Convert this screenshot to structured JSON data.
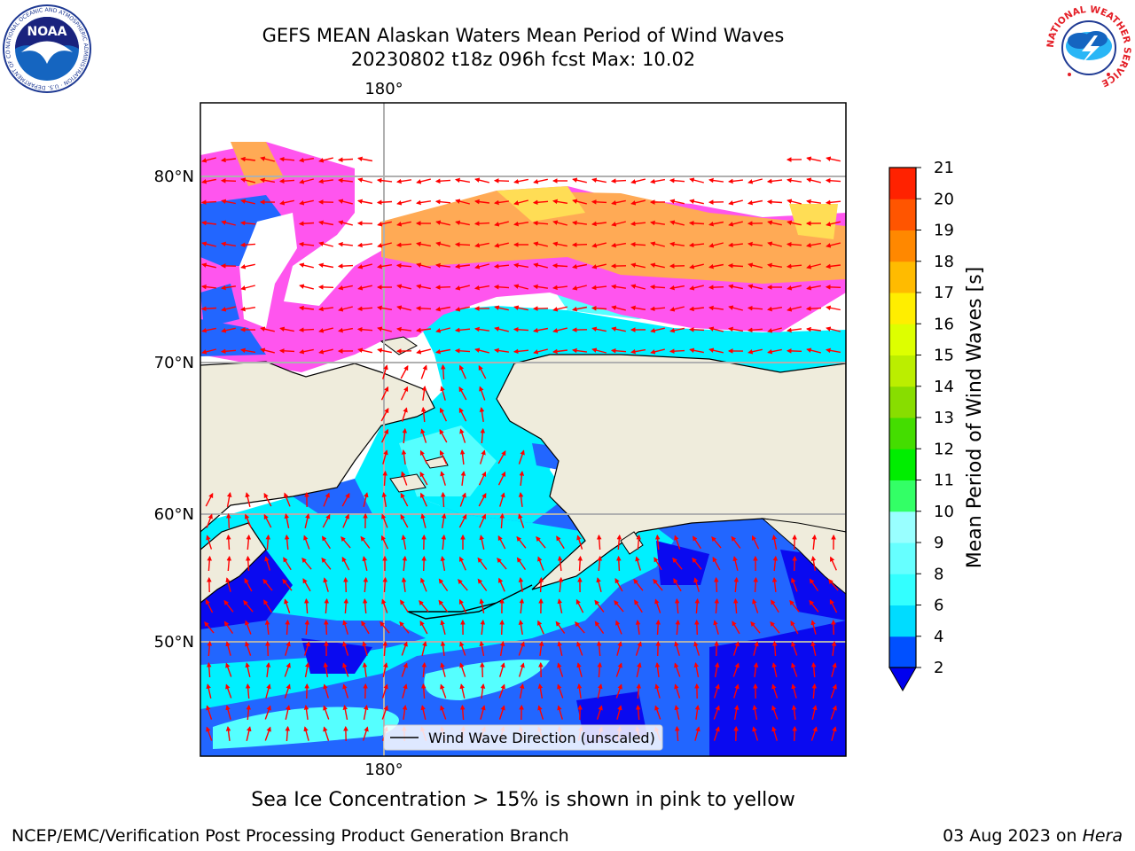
{
  "header": {
    "title_line1": "GEFS MEAN Alaskan Waters Mean Period of Wind Waves",
    "title_line2": "20230802 t18z 096h fcst   Max: 10.02"
  },
  "logos": {
    "left": {
      "icon": "noaa-logo-icon",
      "text": "NOAA",
      "ring_text": "NATIONAL OCEANIC AND ATMOSPHERIC ADMINISTRATION · U.S. DEPARTMENT OF COMMERCE"
    },
    "right": {
      "icon": "nws-logo-icon",
      "ring_text": "NATIONAL WEATHER SERVICE"
    }
  },
  "map": {
    "lon_label_top": "180°",
    "lon_label_bottom": "180°",
    "lat_labels": [
      "80°N",
      "70°N",
      "60°N",
      "50°N"
    ],
    "legend_label": "Wind Wave Direction (unscaled)"
  },
  "colorbar": {
    "label": "Mean Period of Wind Waves [s]",
    "ticks": [
      "2",
      "4",
      "6",
      "8",
      "9",
      "10",
      "11",
      "12",
      "13",
      "14",
      "15",
      "16",
      "17",
      "18",
      "19",
      "20",
      "21"
    ],
    "colors": [
      "#0050ff",
      "#00dcff",
      "#33ffff",
      "#66ffff",
      "#99ffff",
      "#33ff66",
      "#00ee00",
      "#44dd00",
      "#88dd00",
      "#bbee00",
      "#ddff00",
      "#ffee00",
      "#ffbb00",
      "#ff8800",
      "#ff5500",
      "#ff2200"
    ],
    "under_color": "#0000ee"
  },
  "palette": {
    "land": "#efecdc",
    "deep_blue": "#0a0af0",
    "blue": "#2266ff",
    "cyan": "#00f0ff",
    "light_cyan": "#55ffff",
    "ice_pink": "#ff55ee",
    "ice_orange": "#ffaa55",
    "ice_yellow": "#ffdd55",
    "arrow": "#ff0000",
    "grid": "#b0b0b0"
  },
  "footer": {
    "ice_note": "Sea Ice Concentration > 15% is shown in pink to yellow",
    "producer": "NCEP/EMC/Verification Post Processing Product Generation Branch",
    "date": "03 Aug 2023 on ",
    "machine": "Hera"
  }
}
